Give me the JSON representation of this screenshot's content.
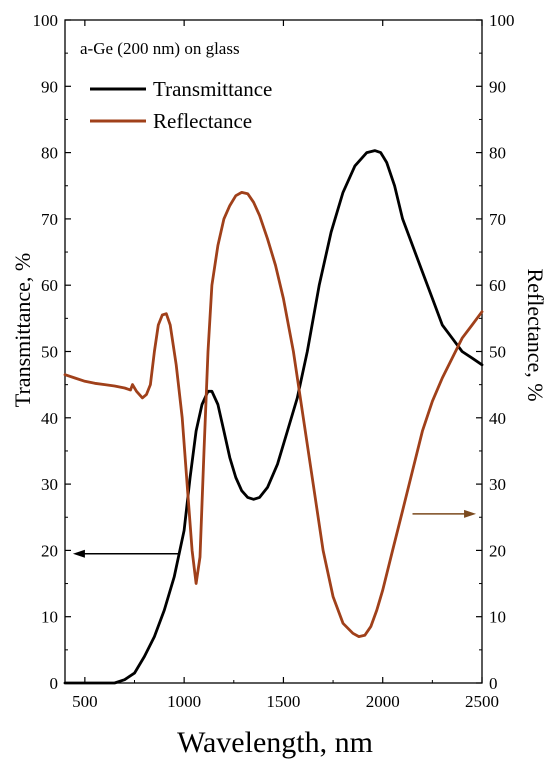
{
  "chart_data": {
    "type": "line",
    "title": "",
    "annotation": "a-Ge (200 nm) on glass",
    "xlabel": "Wavelength, nm",
    "ylabel_left": "Transmittance, %",
    "ylabel_right": "Reflectance, %",
    "xlim": [
      400,
      2500
    ],
    "ylim_left": [
      0,
      100
    ],
    "ylim_right": [
      0,
      100
    ],
    "xticks": [
      500,
      1000,
      1500,
      2000,
      2500
    ],
    "yticks": [
      0,
      10,
      20,
      30,
      40,
      50,
      60,
      70,
      80,
      90,
      100
    ],
    "grid": false,
    "legend": {
      "placement": "top-left",
      "entries": [
        "Transmittance",
        "Reflectance"
      ]
    },
    "series": [
      {
        "name": "Transmittance",
        "axis": "left",
        "color": "#000000",
        "x": [
          400,
          500,
          600,
          650,
          700,
          750,
          800,
          850,
          900,
          950,
          1000,
          1030,
          1060,
          1090,
          1120,
          1140,
          1170,
          1200,
          1230,
          1260,
          1290,
          1320,
          1350,
          1380,
          1420,
          1470,
          1520,
          1570,
          1620,
          1680,
          1740,
          1800,
          1860,
          1920,
          1960,
          1990,
          2020,
          2060,
          2100,
          2150,
          2200,
          2250,
          2300,
          2350,
          2400,
          2450,
          2500
        ],
        "y": [
          0,
          0,
          0,
          0,
          0.5,
          1.5,
          4,
          7,
          11,
          16,
          23,
          31,
          38,
          42,
          44,
          44,
          42,
          38,
          34,
          31,
          29,
          28,
          27.7,
          28,
          29.5,
          33,
          38,
          43,
          50,
          60,
          68,
          74,
          78,
          80,
          80.3,
          80,
          78.5,
          75,
          70,
          66,
          62,
          58,
          54,
          52,
          50,
          49,
          48
        ]
      },
      {
        "name": "Reflectance",
        "axis": "right",
        "color": "#A0401A",
        "x": [
          400,
          450,
          500,
          550,
          600,
          650,
          700,
          730,
          740,
          760,
          790,
          810,
          830,
          850,
          870,
          890,
          910,
          930,
          960,
          990,
          1020,
          1040,
          1060,
          1080,
          1100,
          1120,
          1140,
          1170,
          1200,
          1230,
          1260,
          1290,
          1320,
          1350,
          1380,
          1420,
          1460,
          1500,
          1550,
          1600,
          1650,
          1700,
          1750,
          1800,
          1850,
          1880,
          1910,
          1940,
          1970,
          2000,
          2050,
          2100,
          2150,
          2200,
          2250,
          2300,
          2350,
          2400,
          2450,
          2500
        ],
        "y": [
          46.5,
          46,
          45.5,
          45.2,
          45,
          44.8,
          44.5,
          44.2,
          45,
          44,
          43,
          43.5,
          45,
          50,
          54,
          55.5,
          55.7,
          54,
          48,
          40,
          28,
          20,
          15,
          19,
          35,
          50,
          60,
          66,
          70,
          72,
          73.5,
          74,
          73.8,
          72.5,
          70.5,
          67,
          63,
          58,
          50,
          40,
          30,
          20,
          13,
          9,
          7.5,
          7,
          7.2,
          8.5,
          11,
          14,
          20,
          26,
          32,
          38,
          42.5,
          46,
          49,
          52,
          54,
          56
        ]
      }
    ],
    "arrows": [
      {
        "direction": "left",
        "target_axis": "left",
        "level": 19.5,
        "color": "#000000"
      },
      {
        "direction": "right",
        "target_axis": "right",
        "level": 25.5,
        "color": "#7B4A1E"
      }
    ]
  }
}
